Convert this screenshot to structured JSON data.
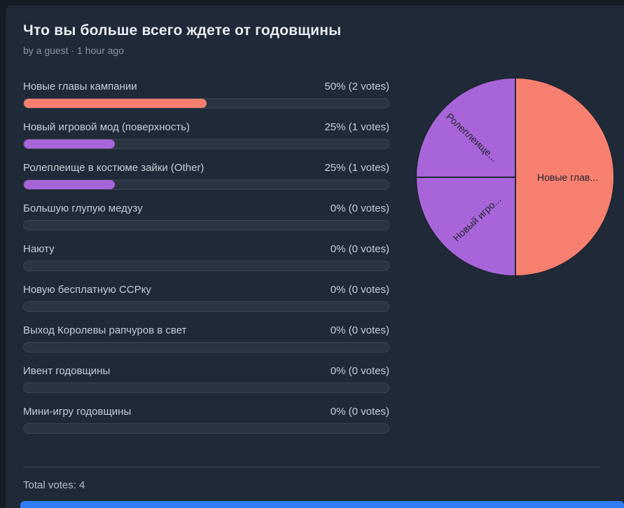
{
  "poll": {
    "title": "Что вы больше всего ждете от годовщины",
    "byline": "by a guest · 1 hour ago",
    "total_votes_label": "Total votes: 4",
    "options": [
      {
        "label": "Новые главы кампании",
        "result": "50% (2 votes)",
        "percent": 50,
        "color": "#f88070"
      },
      {
        "label": "Новый игровой мод (поверхность)",
        "result": "25% (1 votes)",
        "percent": 25,
        "color": "#a865d9"
      },
      {
        "label": "Ролеплеище в костюме зайки (Other)",
        "result": "25% (1 votes)",
        "percent": 25,
        "color": "#a865d9"
      },
      {
        "label": "Большую глупую медузу",
        "result": "0% (0 votes)",
        "percent": 0,
        "color": null
      },
      {
        "label": "Наюту",
        "result": "0% (0 votes)",
        "percent": 0,
        "color": null
      },
      {
        "label": "Новую бесплатную ССРку",
        "result": "0% (0 votes)",
        "percent": 0,
        "color": null
      },
      {
        "label": "Выход Королевы рапчуров в свет",
        "result": "0% (0 votes)",
        "percent": 0,
        "color": null
      },
      {
        "label": "Ивент годовщины",
        "result": "0% (0 votes)",
        "percent": 0,
        "color": null
      },
      {
        "label": "Мини-игру годовщины",
        "result": "0% (0 votes)",
        "percent": 0,
        "color": null
      }
    ]
  },
  "chart_data": {
    "type": "pie",
    "title": "Что вы больше всего ждете от годовщины",
    "categories": [
      "Новые главы кампании",
      "Новый игровой мод (поверхность)",
      "Ролеплеище в костюме зайки (Other)",
      "Большую глупую медузу",
      "Наюту",
      "Новую бесплатную ССРку",
      "Выход Королевы рапчуров в свет",
      "Ивент годовщины",
      "Мини-игру годовщины"
    ],
    "values": [
      2,
      1,
      1,
      0,
      0,
      0,
      0,
      0,
      0
    ],
    "percentages": [
      50,
      25,
      25,
      0,
      0,
      0,
      0,
      0,
      0
    ],
    "total_votes": 4,
    "legend_position": "none",
    "slices": [
      {
        "label": "Новые глав...",
        "percent": 50,
        "color": "#f88070"
      },
      {
        "label": "Новый игро...",
        "percent": 25,
        "color": "#a865d9"
      },
      {
        "label": "Ролеплеище...",
        "percent": 25,
        "color": "#a865d9"
      }
    ]
  },
  "colors": {
    "background": "#202937",
    "page_edge": "#151c26",
    "bar_track": "#2b3443",
    "coral": "#f88070",
    "purple": "#a865d9",
    "bottom_bar_blue": "#2f7df5",
    "pie_label_text": "#20262f"
  }
}
